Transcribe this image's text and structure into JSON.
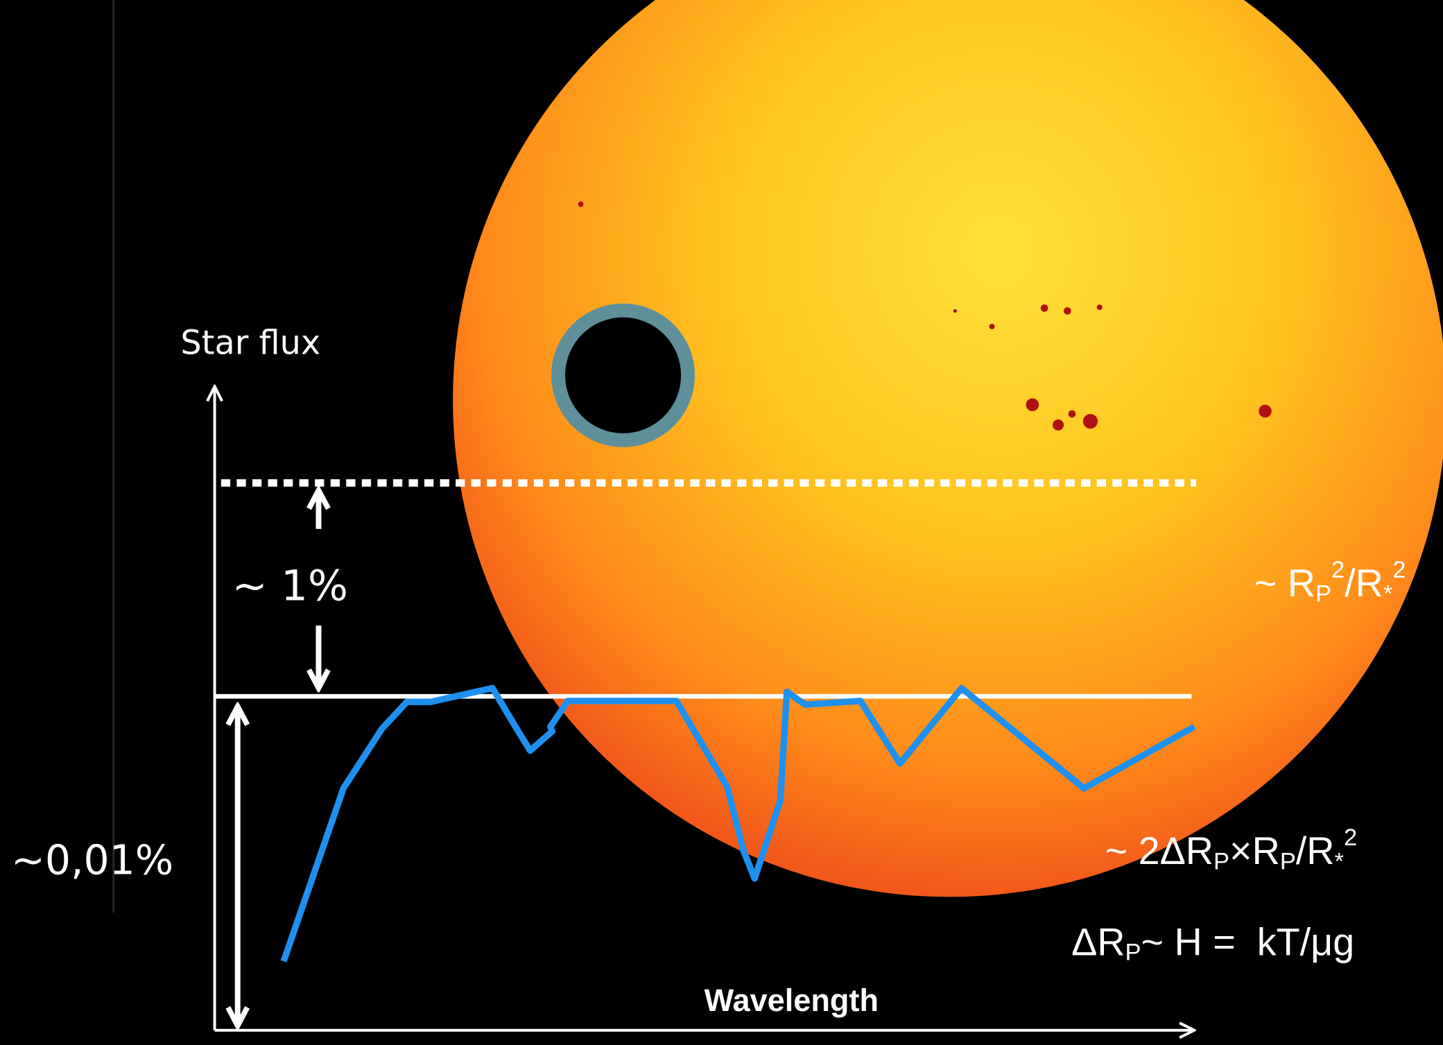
{
  "labels": {
    "y_axis": "Star flux",
    "x_axis": "Wavelength",
    "transit_depth": "~ 1%",
    "atmosphere_depth": "~0,01%"
  },
  "formulas": {
    "transit_depth": [
      "~ R",
      "P",
      "2",
      "/R",
      "*",
      "2"
    ],
    "atmosphere_signal": [
      "~ 2ΔR",
      "P",
      "×R",
      "P",
      "/R",
      "*",
      "2"
    ],
    "scale_height": [
      "ΔR",
      "P",
      "~ H =  kT/μg"
    ]
  }
}
